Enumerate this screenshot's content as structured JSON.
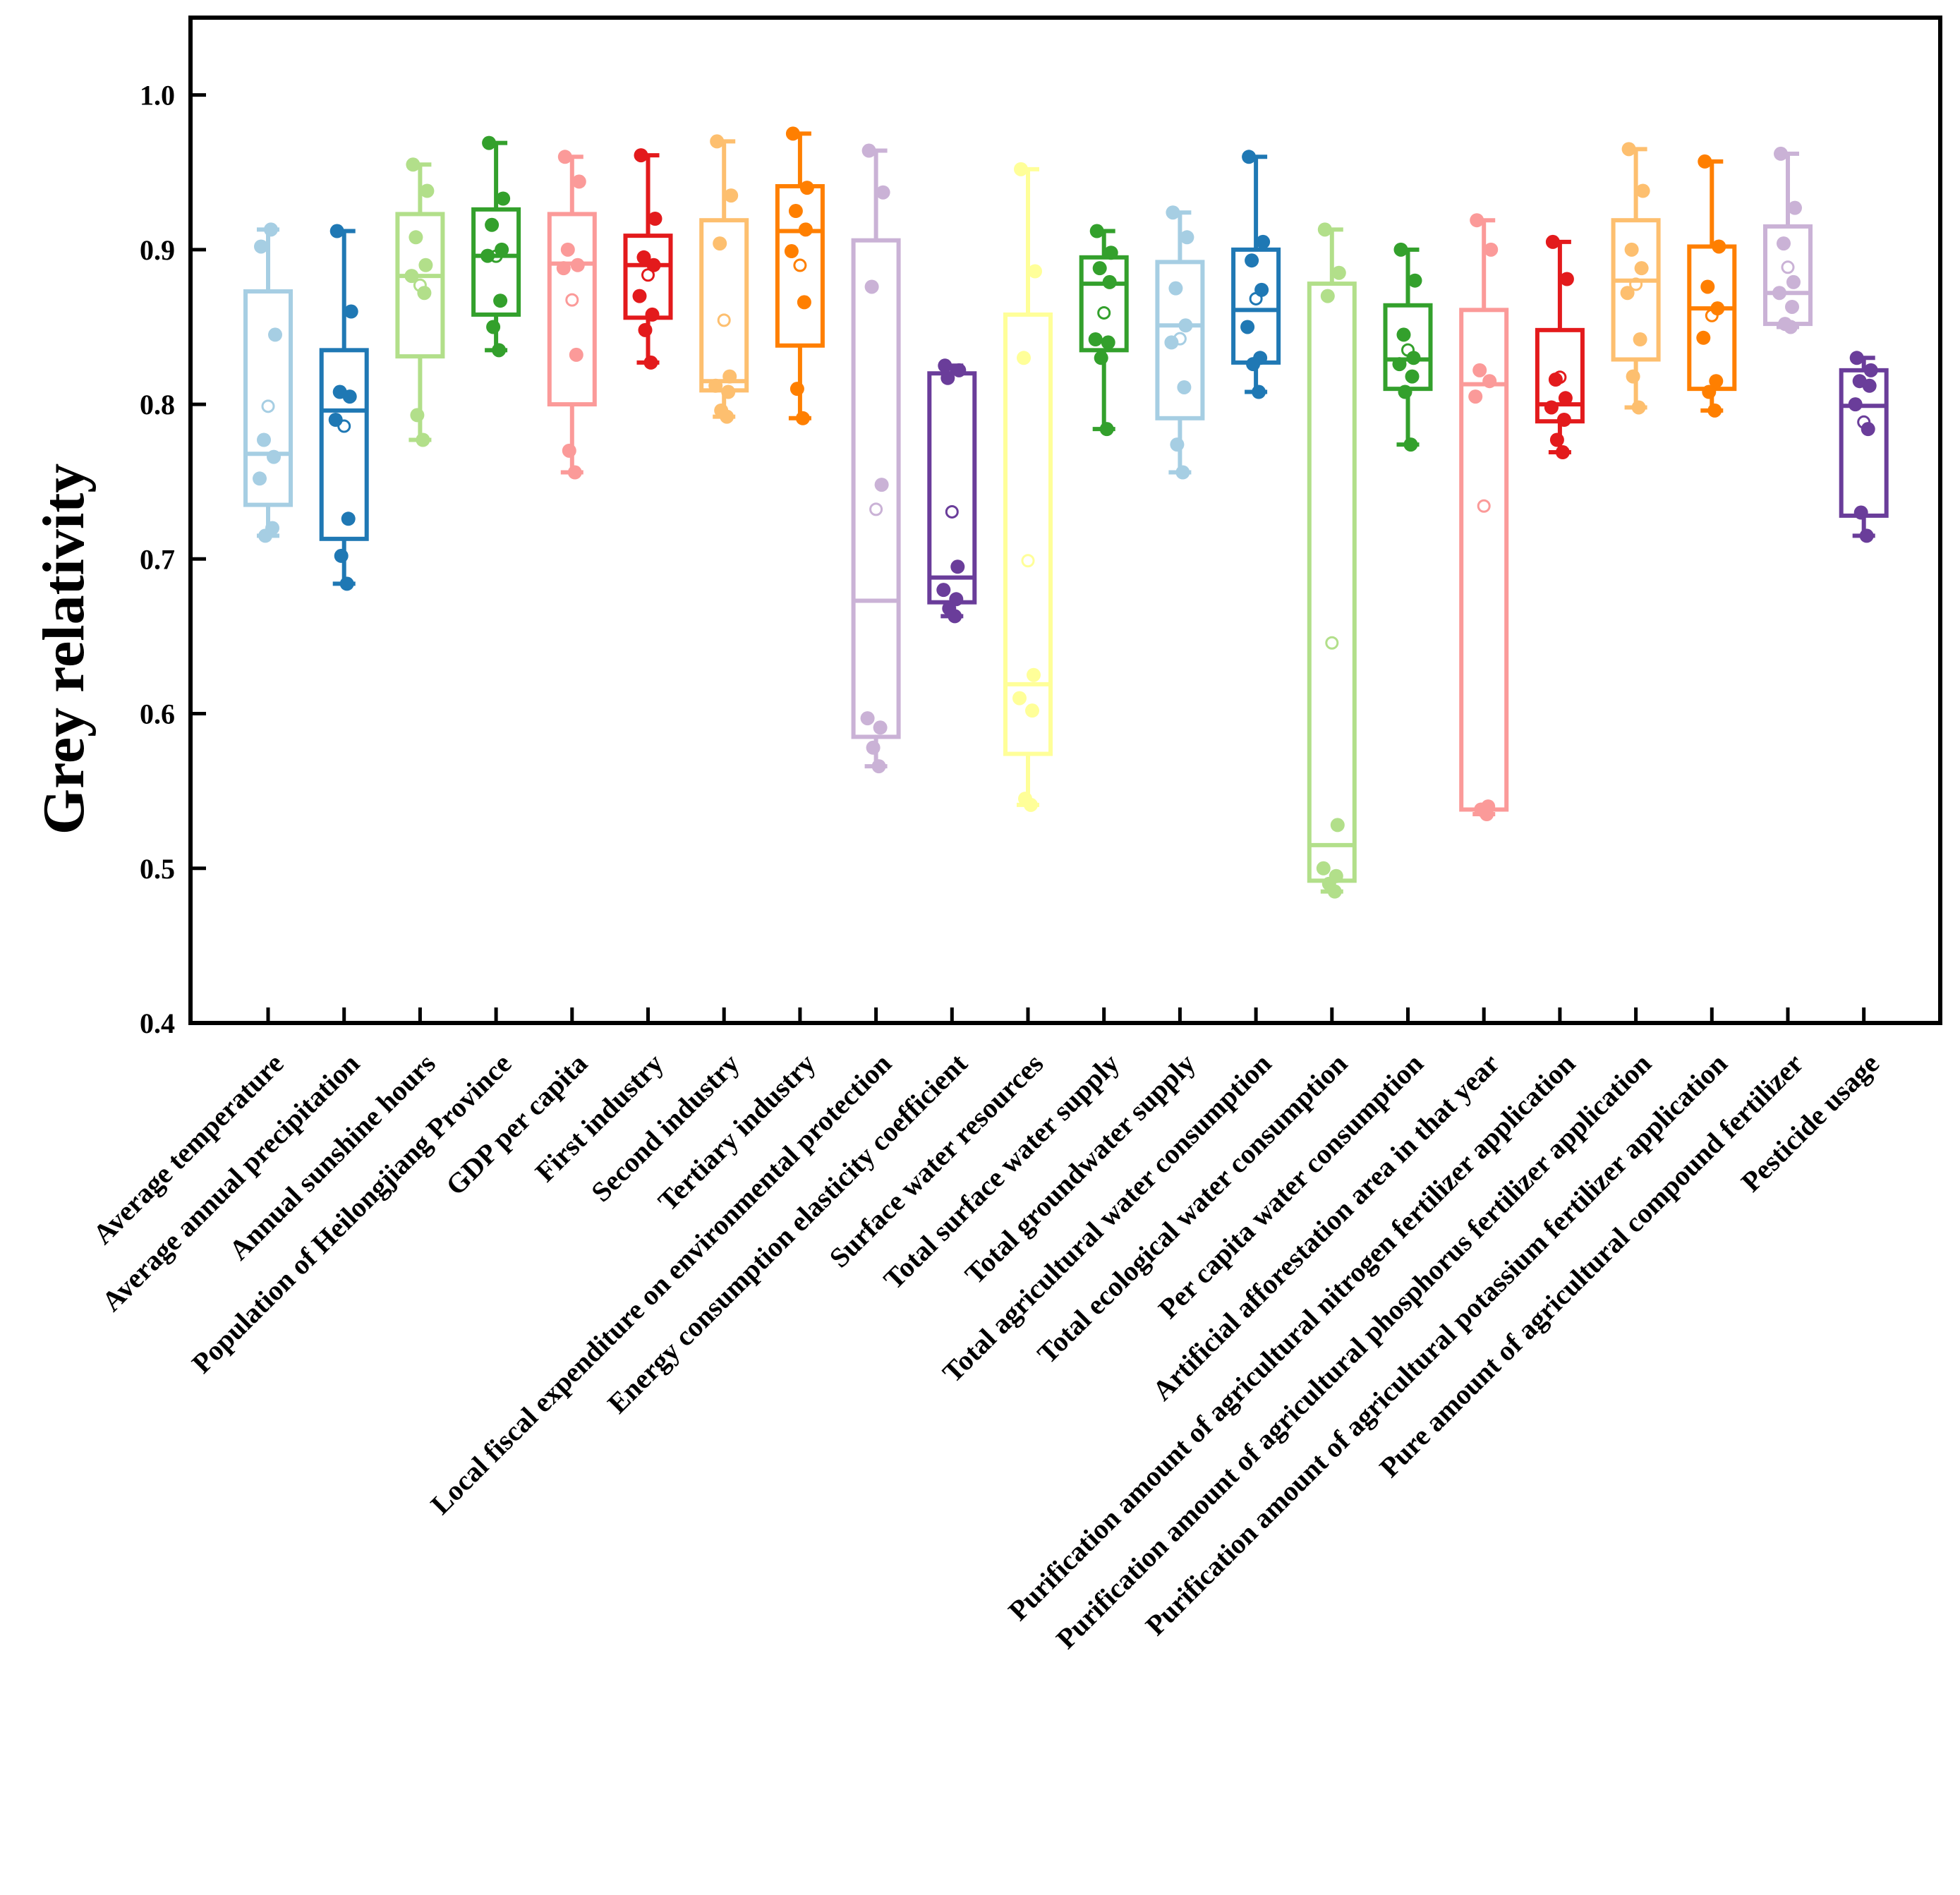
{
  "chart_data": {
    "type": "box",
    "title": "",
    "xlabel": "",
    "ylabel": "Grey relativity",
    "ylim": [
      0.4,
      1.05
    ],
    "yticks": [
      "0.4",
      "0.5",
      "0.6",
      "0.7",
      "0.8",
      "0.9",
      "1.0"
    ],
    "grid": false,
    "legend": "none",
    "series": [
      {
        "name": "Average temperature",
        "color": "#a6cee3",
        "min": 0.715,
        "q1": 0.735,
        "median": 0.768,
        "q3": 0.873,
        "max": 0.913,
        "points": [
          0.902,
          0.845,
          0.777,
          0.766,
          0.752,
          0.72,
          0.715,
          0.913
        ]
      },
      {
        "name": "Average annual precipitation",
        "color": "#1f78b4",
        "min": 0.684,
        "q1": 0.713,
        "median": 0.796,
        "q3": 0.835,
        "max": 0.912,
        "points": [
          0.912,
          0.86,
          0.808,
          0.805,
          0.79,
          0.726,
          0.702,
          0.684
        ]
      },
      {
        "name": "Annual sunshine hours",
        "color": "#b2df8a",
        "min": 0.777,
        "q1": 0.831,
        "median": 0.883,
        "q3": 0.923,
        "max": 0.955,
        "points": [
          0.955,
          0.938,
          0.908,
          0.89,
          0.883,
          0.872,
          0.793,
          0.777
        ]
      },
      {
        "name": "Population of Heilongjiang Province",
        "color": "#33a02c",
        "min": 0.835,
        "q1": 0.858,
        "median": 0.896,
        "q3": 0.926,
        "max": 0.969,
        "points": [
          0.969,
          0.933,
          0.916,
          0.9,
          0.896,
          0.867,
          0.85,
          0.835
        ]
      },
      {
        "name": "GDP per capita",
        "color": "#fb9a99",
        "min": 0.756,
        "q1": 0.8,
        "median": 0.891,
        "q3": 0.923,
        "max": 0.96,
        "points": [
          0.96,
          0.944,
          0.9,
          0.89,
          0.888,
          0.832,
          0.77,
          0.756
        ]
      },
      {
        "name": "First industry",
        "color": "#e31a1c",
        "min": 0.827,
        "q1": 0.856,
        "median": 0.89,
        "q3": 0.909,
        "max": 0.961,
        "points": [
          0.961,
          0.92,
          0.895,
          0.89,
          0.87,
          0.858,
          0.848,
          0.827
        ]
      },
      {
        "name": "Second industry",
        "color": "#fdbf6f",
        "min": 0.792,
        "q1": 0.809,
        "median": 0.815,
        "q3": 0.919,
        "max": 0.97,
        "points": [
          0.97,
          0.935,
          0.904,
          0.818,
          0.812,
          0.808,
          0.796,
          0.792
        ]
      },
      {
        "name": "Tertiary industry",
        "color": "#ff7f00",
        "min": 0.791,
        "q1": 0.838,
        "median": 0.912,
        "q3": 0.941,
        "max": 0.975,
        "points": [
          0.975,
          0.94,
          0.925,
          0.913,
          0.899,
          0.866,
          0.81,
          0.791
        ]
      },
      {
        "name": "Local fiscal expenditure on environmental protection",
        "color": "#cab2d6",
        "min": 0.566,
        "q1": 0.585,
        "median": 0.673,
        "q3": 0.906,
        "max": 0.964,
        "points": [
          0.964,
          0.937,
          0.876,
          0.748,
          0.597,
          0.591,
          0.578,
          0.566
        ]
      },
      {
        "name": "Energy consumption elasticity coefficient",
        "color": "#6a3d9a",
        "min": 0.663,
        "q1": 0.672,
        "median": 0.688,
        "q3": 0.82,
        "max": 0.825,
        "points": [
          0.825,
          0.822,
          0.817,
          0.695,
          0.68,
          0.674,
          0.668,
          0.663
        ]
      },
      {
        "name": "Surface water resources",
        "color": "#ffff99",
        "min": 0.541,
        "q1": 0.574,
        "median": 0.619,
        "q3": 0.858,
        "max": 0.952,
        "points": [
          0.952,
          0.886,
          0.83,
          0.625,
          0.61,
          0.602,
          0.545,
          0.541
        ]
      },
      {
        "name": "Total surface water supply",
        "color": "#33a02c",
        "min": 0.784,
        "q1": 0.835,
        "median": 0.878,
        "q3": 0.895,
        "max": 0.912,
        "points": [
          0.912,
          0.898,
          0.888,
          0.879,
          0.842,
          0.84,
          0.83,
          0.784
        ]
      },
      {
        "name": "Total groundwater supply",
        "color": "#a6cee3",
        "min": 0.756,
        "q1": 0.791,
        "median": 0.851,
        "q3": 0.892,
        "max": 0.924,
        "points": [
          0.924,
          0.908,
          0.875,
          0.851,
          0.84,
          0.811,
          0.774,
          0.756
        ]
      },
      {
        "name": "Total agricultural water consumption",
        "color": "#1f78b4",
        "min": 0.808,
        "q1": 0.827,
        "median": 0.861,
        "q3": 0.9,
        "max": 0.96,
        "points": [
          0.96,
          0.905,
          0.893,
          0.874,
          0.85,
          0.83,
          0.826,
          0.808
        ]
      },
      {
        "name": "Total ecological water consumption",
        "color": "#b2df8a",
        "min": 0.485,
        "q1": 0.492,
        "median": 0.515,
        "q3": 0.878,
        "max": 0.913,
        "points": [
          0.913,
          0.885,
          0.87,
          0.528,
          0.5,
          0.495,
          0.49,
          0.485
        ]
      },
      {
        "name": "Per capita water consumption",
        "color": "#33a02c",
        "min": 0.774,
        "q1": 0.81,
        "median": 0.829,
        "q3": 0.864,
        "max": 0.9,
        "points": [
          0.9,
          0.88,
          0.845,
          0.83,
          0.826,
          0.818,
          0.808,
          0.774
        ]
      },
      {
        "name": "Artificial afforestation area in that year",
        "color": "#fb9a99",
        "min": 0.535,
        "q1": 0.538,
        "median": 0.813,
        "q3": 0.861,
        "max": 0.919,
        "points": [
          0.919,
          0.9,
          0.822,
          0.815,
          0.805,
          0.54,
          0.538,
          0.535
        ]
      },
      {
        "name": "Purification amount of agricultural nitrogen fertilizer application",
        "color": "#e31a1c",
        "min": 0.769,
        "q1": 0.789,
        "median": 0.8,
        "q3": 0.848,
        "max": 0.905,
        "points": [
          0.905,
          0.881,
          0.816,
          0.804,
          0.798,
          0.79,
          0.777,
          0.769
        ]
      },
      {
        "name": "Purification amount of agricultural phosphorus fertilizer application",
        "color": "#fdbf6f",
        "min": 0.798,
        "q1": 0.829,
        "median": 0.88,
        "q3": 0.919,
        "max": 0.965,
        "points": [
          0.965,
          0.938,
          0.9,
          0.888,
          0.872,
          0.842,
          0.818,
          0.798
        ]
      },
      {
        "name": "Purification amount of agricultural potassium fertilizer application",
        "color": "#ff7f00",
        "min": 0.796,
        "q1": 0.81,
        "median": 0.862,
        "q3": 0.902,
        "max": 0.957,
        "points": [
          0.957,
          0.902,
          0.876,
          0.862,
          0.843,
          0.815,
          0.808,
          0.796
        ]
      },
      {
        "name": "Pure amount of agricultural compound fertilizer",
        "color": "#cab2d6",
        "min": 0.85,
        "q1": 0.852,
        "median": 0.872,
        "q3": 0.915,
        "max": 0.962,
        "points": [
          0.962,
          0.927,
          0.904,
          0.879,
          0.872,
          0.863,
          0.852,
          0.85
        ]
      },
      {
        "name": "Pesticide usage",
        "color": "#6a3d9a",
        "min": 0.715,
        "q1": 0.728,
        "median": 0.799,
        "q3": 0.822,
        "max": 0.83,
        "points": [
          0.83,
          0.822,
          0.815,
          0.812,
          0.8,
          0.784,
          0.73,
          0.715
        ]
      }
    ]
  }
}
